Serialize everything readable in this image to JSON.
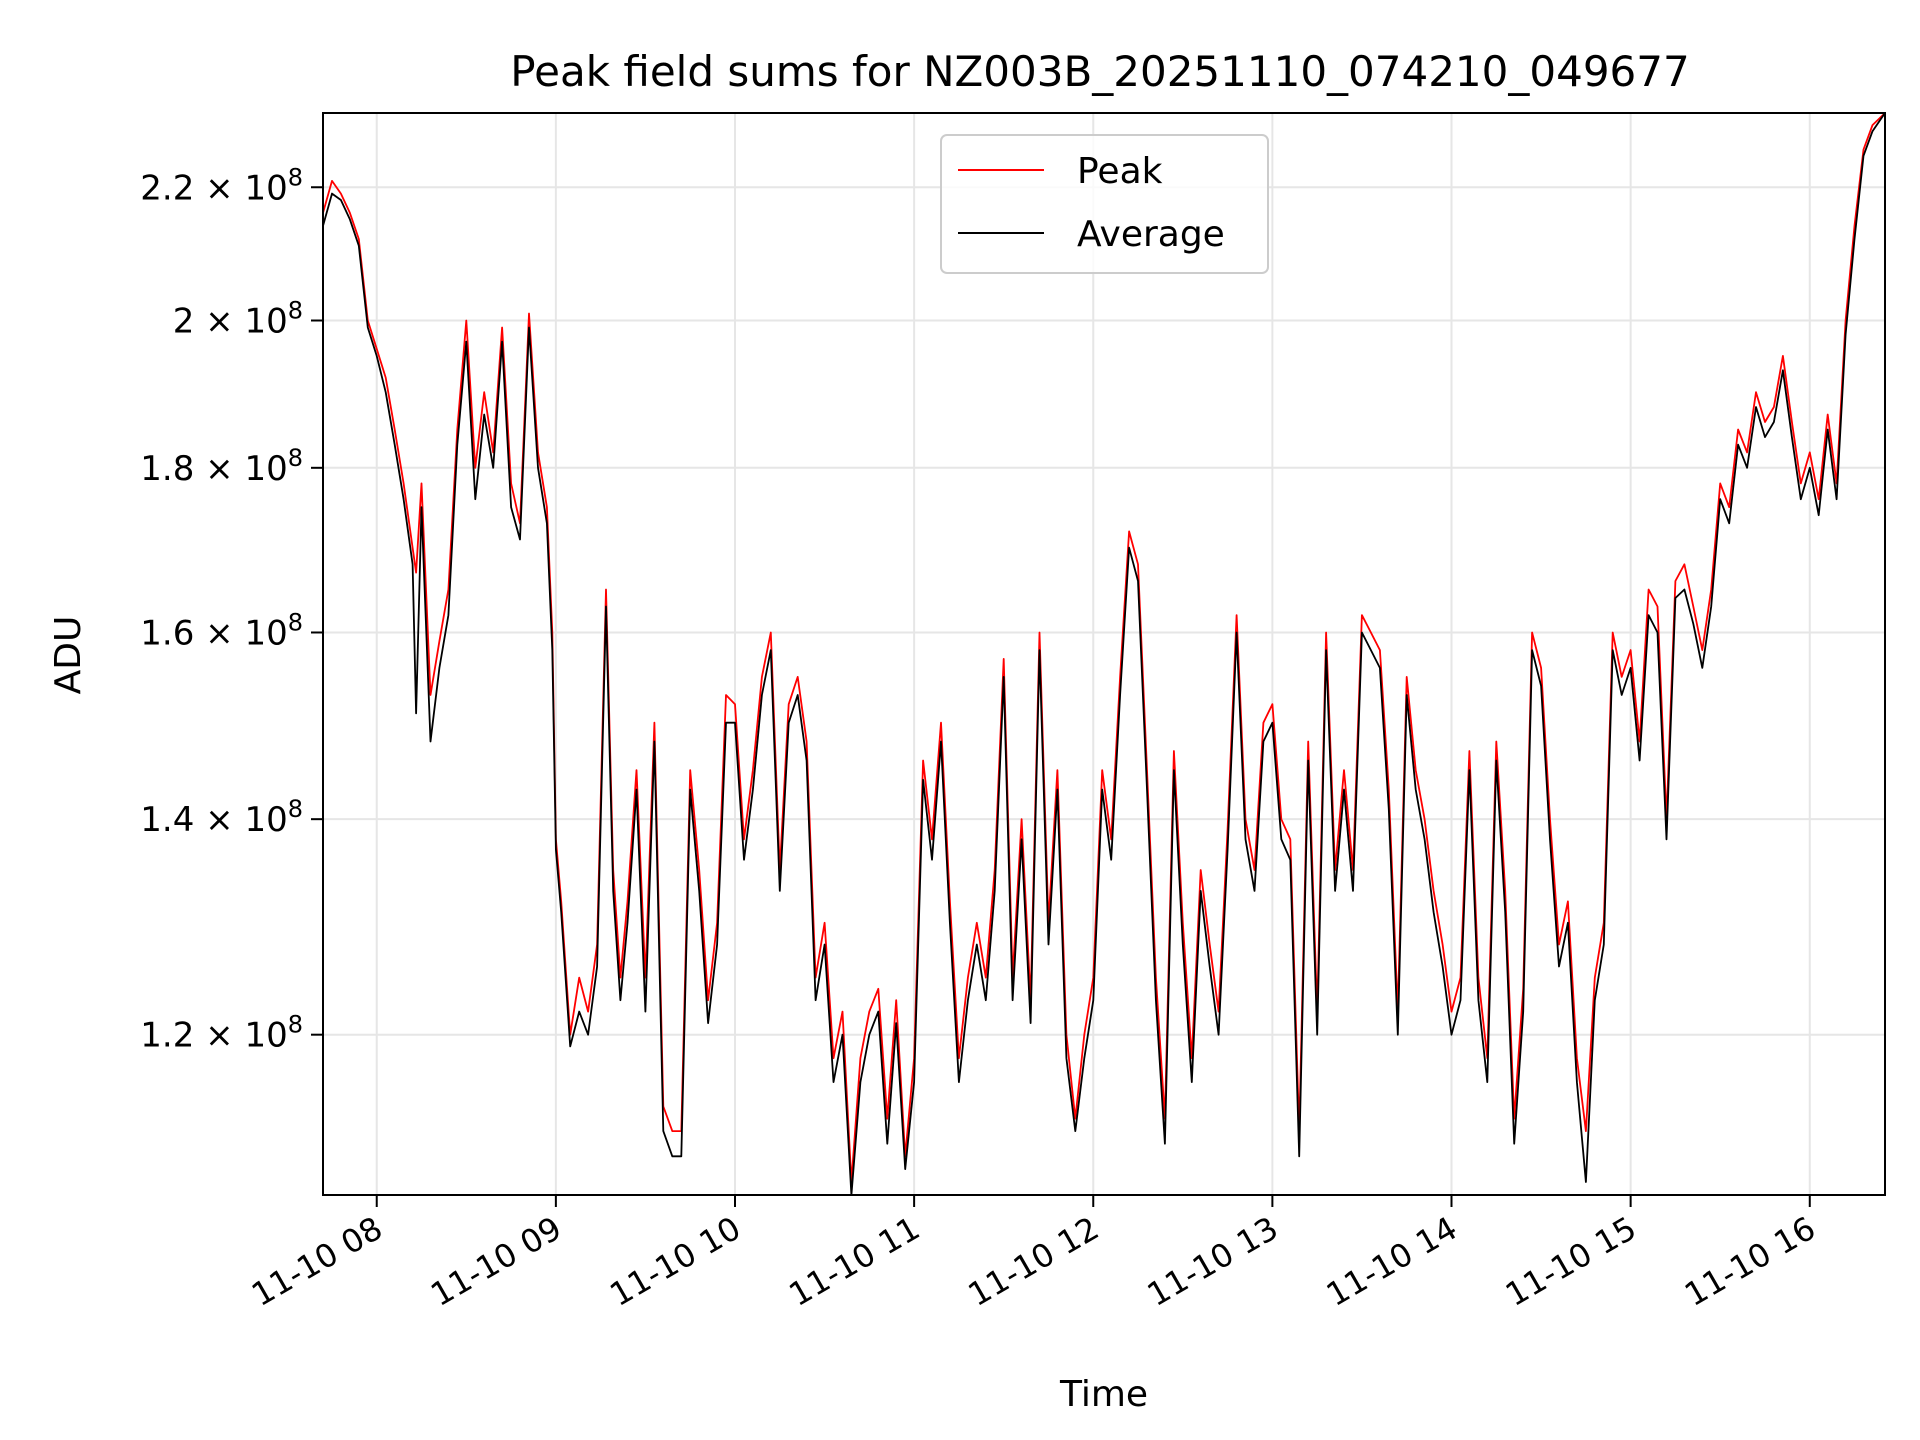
{
  "chart_data": {
    "type": "line",
    "title": "Peak field sums for NZ003B_20251110_074210_049677",
    "xlabel": "Time",
    "ylabel": "ADU",
    "yscale": "log",
    "grid": true,
    "legend_position": "upper center",
    "x_range_hours": [
      7.7,
      16.42
    ],
    "y_range": [
      107000000,
      232000000
    ],
    "x_ticks": [
      {
        "value": 8,
        "label": "11-10 08"
      },
      {
        "value": 9,
        "label": "11-10 09"
      },
      {
        "value": 10,
        "label": "11-10 10"
      },
      {
        "value": 11,
        "label": "11-10 11"
      },
      {
        "value": 12,
        "label": "11-10 12"
      },
      {
        "value": 13,
        "label": "11-10 13"
      },
      {
        "value": 14,
        "label": "11-10 14"
      },
      {
        "value": 15,
        "label": "11-10 15"
      },
      {
        "value": 16,
        "label": "11-10 16"
      }
    ],
    "y_ticks": [
      {
        "value": 120000000,
        "mantissa": "1.2",
        "base": "10",
        "exponent": "8"
      },
      {
        "value": 140000000,
        "mantissa": "1.4",
        "base": "10",
        "exponent": "8"
      },
      {
        "value": 160000000,
        "mantissa": "1.6",
        "base": "10",
        "exponent": "8"
      },
      {
        "value": 180000000,
        "mantissa": "1.8",
        "base": "10",
        "exponent": "8"
      },
      {
        "value": 200000000,
        "mantissa": "2",
        "base": "10",
        "exponent": "8"
      },
      {
        "value": 220000000,
        "mantissa": "2.2",
        "base": "10",
        "exponent": "8"
      }
    ],
    "series": [
      {
        "name": "Peak",
        "color": "#ff0000",
        "x": [
          7.7,
          7.75,
          7.8,
          7.85,
          7.9,
          7.95,
          8.0,
          8.05,
          8.1,
          8.15,
          8.2,
          8.22,
          8.25,
          8.3,
          8.35,
          8.4,
          8.45,
          8.5,
          8.55,
          8.6,
          8.65,
          8.7,
          8.75,
          8.8,
          8.85,
          8.9,
          8.95,
          8.98,
          9.0,
          9.03,
          9.08,
          9.13,
          9.18,
          9.23,
          9.28,
          9.32,
          9.36,
          9.4,
          9.45,
          9.5,
          9.55,
          9.6,
          9.65,
          9.7,
          9.75,
          9.8,
          9.85,
          9.9,
          9.95,
          10.0,
          10.05,
          10.1,
          10.15,
          10.2,
          10.25,
          10.3,
          10.35,
          10.4,
          10.45,
          10.5,
          10.55,
          10.6,
          10.65,
          10.7,
          10.75,
          10.8,
          10.85,
          10.9,
          10.95,
          11.0,
          11.05,
          11.1,
          11.15,
          11.2,
          11.25,
          11.3,
          11.35,
          11.4,
          11.45,
          11.5,
          11.55,
          11.6,
          11.65,
          11.7,
          11.75,
          11.8,
          11.85,
          11.9,
          11.95,
          12.0,
          12.05,
          12.1,
          12.15,
          12.2,
          12.25,
          12.3,
          12.35,
          12.4,
          12.45,
          12.5,
          12.55,
          12.6,
          12.65,
          12.7,
          12.75,
          12.8,
          12.85,
          12.9,
          12.95,
          13.0,
          13.05,
          13.1,
          13.15,
          13.2,
          13.25,
          13.3,
          13.35,
          13.4,
          13.45,
          13.5,
          13.55,
          13.6,
          13.65,
          13.7,
          13.75,
          13.8,
          13.85,
          13.9,
          13.95,
          14.0,
          14.05,
          14.1,
          14.15,
          14.2,
          14.25,
          14.3,
          14.35,
          14.4,
          14.45,
          14.5,
          14.55,
          14.6,
          14.65,
          14.7,
          14.75,
          14.8,
          14.85,
          14.9,
          14.95,
          15.0,
          15.05,
          15.1,
          15.15,
          15.2,
          15.25,
          15.3,
          15.35,
          15.4,
          15.45,
          15.5,
          15.55,
          15.6,
          15.65,
          15.7,
          15.75,
          15.8,
          15.85,
          15.9,
          15.95,
          16.0,
          16.05,
          16.1,
          16.15,
          16.2,
          16.25,
          16.3,
          16.35,
          16.42
        ],
        "values": [
          216000000,
          221000000,
          219000000,
          216000000,
          212000000,
          200000000,
          196000000,
          192000000,
          185000000,
          178000000,
          170000000,
          167000000,
          178000000,
          153000000,
          159000000,
          165000000,
          185000000,
          200000000,
          180000000,
          190000000,
          182000000,
          199000000,
          178000000,
          173000000,
          201000000,
          182000000,
          175000000,
          160000000,
          138000000,
          132000000,
          120000000,
          125000000,
          122000000,
          128000000,
          165000000,
          135000000,
          125000000,
          132000000,
          145000000,
          125000000,
          150000000,
          114000000,
          112000000,
          112000000,
          145000000,
          135000000,
          123000000,
          130000000,
          153000000,
          152000000,
          138000000,
          145000000,
          155000000,
          160000000,
          135000000,
          152000000,
          155000000,
          148000000,
          125000000,
          130000000,
          118000000,
          122000000,
          108000000,
          118000000,
          122000000,
          124000000,
          113000000,
          123000000,
          110000000,
          118000000,
          146000000,
          138000000,
          150000000,
          132000000,
          118000000,
          125000000,
          130000000,
          125000000,
          135000000,
          157000000,
          125000000,
          140000000,
          123000000,
          160000000,
          130000000,
          145000000,
          120000000,
          113000000,
          120000000,
          125000000,
          145000000,
          138000000,
          155000000,
          172000000,
          168000000,
          145000000,
          125000000,
          113000000,
          147000000,
          130000000,
          118000000,
          135000000,
          128000000,
          122000000,
          139000000,
          162000000,
          140000000,
          135000000,
          150000000,
          152000000,
          140000000,
          138000000,
          112000000,
          148000000,
          122000000,
          160000000,
          135000000,
          145000000,
          135000000,
          162000000,
          160000000,
          158000000,
          143000000,
          122000000,
          155000000,
          145000000,
          140000000,
          133000000,
          128000000,
          122000000,
          125000000,
          147000000,
          125000000,
          118000000,
          148000000,
          133000000,
          113000000,
          124000000,
          160000000,
          156000000,
          140000000,
          128000000,
          132000000,
          118000000,
          112000000,
          125000000,
          130000000,
          160000000,
          155000000,
          158000000,
          148000000,
          165000000,
          163000000,
          140000000,
          166000000,
          168000000,
          163000000,
          158000000,
          165000000,
          178000000,
          175000000,
          185000000,
          182000000,
          190000000,
          186000000,
          188000000,
          195000000,
          186000000,
          178000000,
          182000000,
          176000000,
          187000000,
          178000000,
          200000000,
          214000000,
          226000000,
          230000000,
          232000000
        ]
      },
      {
        "name": "Average",
        "color": "#000000",
        "x": [
          7.7,
          7.75,
          7.8,
          7.85,
          7.9,
          7.95,
          8.0,
          8.05,
          8.1,
          8.15,
          8.2,
          8.22,
          8.25,
          8.3,
          8.35,
          8.4,
          8.45,
          8.5,
          8.55,
          8.6,
          8.65,
          8.7,
          8.75,
          8.8,
          8.85,
          8.9,
          8.95,
          8.98,
          9.0,
          9.03,
          9.08,
          9.13,
          9.18,
          9.23,
          9.28,
          9.32,
          9.36,
          9.4,
          9.45,
          9.5,
          9.55,
          9.6,
          9.65,
          9.7,
          9.75,
          9.8,
          9.85,
          9.9,
          9.95,
          10.0,
          10.05,
          10.1,
          10.15,
          10.2,
          10.25,
          10.3,
          10.35,
          10.4,
          10.45,
          10.5,
          10.55,
          10.6,
          10.65,
          10.7,
          10.75,
          10.8,
          10.85,
          10.9,
          10.95,
          11.0,
          11.05,
          11.1,
          11.15,
          11.2,
          11.25,
          11.3,
          11.35,
          11.4,
          11.45,
          11.5,
          11.55,
          11.6,
          11.65,
          11.7,
          11.75,
          11.8,
          11.85,
          11.9,
          11.95,
          12.0,
          12.05,
          12.1,
          12.15,
          12.2,
          12.25,
          12.3,
          12.35,
          12.4,
          12.45,
          12.5,
          12.55,
          12.6,
          12.65,
          12.7,
          12.75,
          12.8,
          12.85,
          12.9,
          12.95,
          13.0,
          13.05,
          13.1,
          13.15,
          13.2,
          13.25,
          13.3,
          13.35,
          13.4,
          13.45,
          13.5,
          13.55,
          13.6,
          13.65,
          13.7,
          13.75,
          13.8,
          13.85,
          13.9,
          13.95,
          14.0,
          14.05,
          14.1,
          14.15,
          14.2,
          14.25,
          14.3,
          14.35,
          14.4,
          14.45,
          14.5,
          14.55,
          14.6,
          14.65,
          14.7,
          14.75,
          14.8,
          14.85,
          14.9,
          14.95,
          15.0,
          15.05,
          15.1,
          15.15,
          15.2,
          15.25,
          15.3,
          15.35,
          15.4,
          15.45,
          15.5,
          15.55,
          15.6,
          15.65,
          15.7,
          15.75,
          15.8,
          15.85,
          15.9,
          15.95,
          16.0,
          16.05,
          16.1,
          16.15,
          16.2,
          16.25,
          16.3,
          16.35,
          16.42
        ],
        "values": [
          214000000,
          219000000,
          218000000,
          215000000,
          211000000,
          199000000,
          195000000,
          190000000,
          183000000,
          176000000,
          168000000,
          151000000,
          175000000,
          148000000,
          156000000,
          162000000,
          183000000,
          197000000,
          176000000,
          187000000,
          180000000,
          197000000,
          175000000,
          171000000,
          199000000,
          180000000,
          173000000,
          158000000,
          137000000,
          131000000,
          119000000,
          122000000,
          120000000,
          126000000,
          163000000,
          133000000,
          123000000,
          130000000,
          143000000,
          122000000,
          148000000,
          112000000,
          110000000,
          110000000,
          143000000,
          133000000,
          121000000,
          128000000,
          150000000,
          150000000,
          136000000,
          143000000,
          153000000,
          158000000,
          133000000,
          150000000,
          153000000,
          146000000,
          123000000,
          128000000,
          116000000,
          120000000,
          107000000,
          116000000,
          120000000,
          122000000,
          111000000,
          121000000,
          109000000,
          116000000,
          144000000,
          136000000,
          148000000,
          130000000,
          116000000,
          123000000,
          128000000,
          123000000,
          133000000,
          155000000,
          123000000,
          138000000,
          121000000,
          158000000,
          128000000,
          143000000,
          118000000,
          112000000,
          118000000,
          123000000,
          143000000,
          136000000,
          153000000,
          170000000,
          166000000,
          143000000,
          123000000,
          111000000,
          145000000,
          128000000,
          116000000,
          133000000,
          126000000,
          120000000,
          137000000,
          160000000,
          138000000,
          133000000,
          148000000,
          150000000,
          138000000,
          136000000,
          110000000,
          146000000,
          120000000,
          158000000,
          133000000,
          143000000,
          133000000,
          160000000,
          158000000,
          156000000,
          141000000,
          120000000,
          153000000,
          143000000,
          138000000,
          131000000,
          126000000,
          120000000,
          123000000,
          145000000,
          123000000,
          116000000,
          146000000,
          131000000,
          111000000,
          122000000,
          158000000,
          154000000,
          138000000,
          126000000,
          130000000,
          116000000,
          108000000,
          123000000,
          128000000,
          158000000,
          153000000,
          156000000,
          146000000,
          162000000,
          160000000,
          138000000,
          164000000,
          165000000,
          161000000,
          156000000,
          163000000,
          176000000,
          173000000,
          183000000,
          180000000,
          188000000,
          184000000,
          186000000,
          193000000,
          184000000,
          176000000,
          180000000,
          174000000,
          185000000,
          176000000,
          198000000,
          212000000,
          225000000,
          229000000,
          232000000
        ]
      }
    ]
  }
}
